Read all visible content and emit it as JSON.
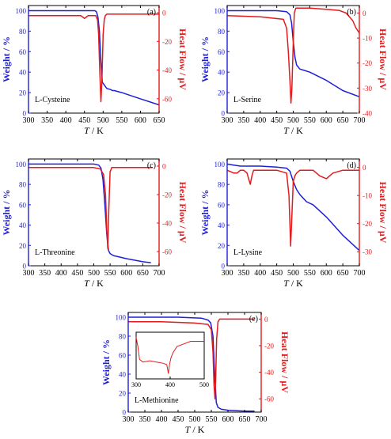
{
  "figure": {
    "colors": {
      "weight": "#1f1fd6",
      "heat": "#e41a1c",
      "axis": "#000000"
    },
    "x_tick_labels": [
      "300",
      "350",
      "400",
      "450",
      "500",
      "550",
      "600",
      "650",
      "700"
    ]
  },
  "chart_data": [
    {
      "type": "line",
      "panel_label": "(a)",
      "compound": "L-Cysteine",
      "xlabel_var": "T",
      "xlabel_unit": " / K",
      "ylabel_left": "Weight / %",
      "ylabel_right": "Heat Flow / µV",
      "xlim": [
        300,
        650
      ],
      "xticks": [
        300,
        350,
        400,
        450,
        500,
        550,
        600,
        650
      ],
      "ylim_left": [
        0,
        105
      ],
      "yticks_left": [
        0,
        20,
        40,
        60,
        80,
        100
      ],
      "ylim_right": [
        -70,
        5
      ],
      "yticks_right": [
        0,
        -20,
        -40,
        -60
      ],
      "grid": false,
      "series": [
        {
          "axis": "left",
          "color": "#1f1fd6",
          "x": [
            300,
            420,
            478,
            482,
            486,
            490,
            494,
            498,
            510,
            520,
            525,
            530,
            550,
            600,
            650
          ],
          "y": [
            100,
            100,
            100,
            99,
            94,
            80,
            50,
            30,
            24,
            23,
            22,
            22,
            20,
            14,
            8
          ]
        },
        {
          "axis": "right",
          "color": "#e41a1c",
          "x": [
            300,
            400,
            440,
            445,
            450,
            455,
            460,
            470,
            480,
            485,
            488,
            491,
            494,
            497,
            500,
            503,
            506,
            510,
            520,
            550,
            600,
            650
          ],
          "y": [
            -2,
            -2,
            -2,
            -3,
            -4,
            -3,
            -2,
            -2,
            -2,
            -5,
            -15,
            -40,
            -62,
            -45,
            -15,
            -5,
            -2,
            -1,
            -1,
            -1,
            -1,
            -1
          ]
        }
      ]
    },
    {
      "type": "line",
      "panel_label": "(b)",
      "compound": "L-Serine",
      "xlabel_var": "T",
      "xlabel_unit": " / K",
      "ylabel_left": "Weight / %",
      "ylabel_right": "Heat Flow / µV",
      "xlim": [
        300,
        700
      ],
      "xticks": [
        300,
        350,
        400,
        450,
        500,
        550,
        600,
        650,
        700
      ],
      "ylim_left": [
        0,
        105
      ],
      "yticks_left": [
        0,
        20,
        40,
        60,
        80,
        100
      ],
      "ylim_right": [
        -40,
        3
      ],
      "yticks_right": [
        0,
        -10,
        -20,
        -30,
        -40
      ],
      "grid": false,
      "series": [
        {
          "axis": "left",
          "color": "#1f1fd6",
          "x": [
            300,
            450,
            480,
            490,
            495,
            500,
            505,
            510,
            520,
            550,
            600,
            650,
            700
          ],
          "y": [
            100,
            100,
            99,
            96,
            88,
            70,
            55,
            47,
            43,
            40,
            32,
            22,
            16
          ]
        },
        {
          "axis": "right",
          "color": "#e41a1c",
          "x": [
            300,
            400,
            470,
            480,
            485,
            490,
            493,
            496,
            500,
            503,
            508,
            515,
            550,
            600,
            640,
            660,
            680,
            690,
            700
          ],
          "y": [
            -1,
            -1.5,
            -2.5,
            -6,
            -15,
            -27,
            -36,
            -30,
            -12,
            0,
            2,
            2,
            2,
            1.5,
            1,
            0,
            -3,
            -6,
            -8
          ]
        }
      ]
    },
    {
      "type": "line",
      "panel_label": "(c)",
      "compound": "L-Threonine",
      "xlabel_var": "T",
      "xlabel_unit": " / K",
      "ylabel_left": "Weight / %",
      "ylabel_right": "Heat Flow / µV",
      "xlim": [
        300,
        700
      ],
      "xticks": [
        300,
        350,
        400,
        450,
        500,
        550,
        600,
        650,
        700
      ],
      "ylim_left": [
        0,
        105
      ],
      "yticks_left": [
        0,
        20,
        40,
        60,
        80,
        100
      ],
      "ylim_right": [
        -70,
        5
      ],
      "yticks_right": [
        0,
        -20,
        -40,
        -60
      ],
      "grid": false,
      "series": [
        {
          "axis": "left",
          "color": "#1f1fd6",
          "x": [
            300,
            500,
            515,
            522,
            528,
            534,
            540,
            545,
            550,
            560,
            600,
            650,
            675
          ],
          "y": [
            100,
            100,
            99,
            96,
            85,
            60,
            30,
            15,
            12,
            10,
            7,
            4,
            3
          ]
        },
        {
          "axis": "right",
          "color": "#e41a1c",
          "x": [
            300,
            450,
            500,
            520,
            530,
            536,
            540,
            543,
            546,
            550,
            555,
            600,
            650,
            680
          ],
          "y": [
            -1,
            -1,
            -1,
            -2,
            -6,
            -20,
            -45,
            -58,
            -30,
            -4,
            -1,
            -1,
            -1,
            -1
          ]
        }
      ]
    },
    {
      "type": "line",
      "panel_label": "(d)",
      "compound": "L-Lysine",
      "xlabel_var": "T",
      "xlabel_unit": " / K",
      "ylabel_left": "Weight / %",
      "ylabel_right": "Heat Flow / µV",
      "xlim": [
        300,
        700
      ],
      "xticks": [
        300,
        350,
        400,
        450,
        500,
        550,
        600,
        650,
        700
      ],
      "ylim_left": [
        0,
        105
      ],
      "yticks_left": [
        0,
        20,
        40,
        60,
        80,
        100
      ],
      "ylim_right": [
        -35,
        3
      ],
      "yticks_right": [
        0,
        -10,
        -20,
        -30
      ],
      "grid": false,
      "series": [
        {
          "axis": "left",
          "color": "#1f1fd6",
          "x": [
            300,
            320,
            340,
            360,
            400,
            450,
            480,
            490,
            500,
            510,
            520,
            540,
            560,
            600,
            650,
            700
          ],
          "y": [
            100,
            99,
            98,
            98,
            98,
            97,
            96,
            93,
            83,
            75,
            70,
            63,
            60,
            48,
            30,
            15
          ]
        },
        {
          "axis": "right",
          "color": "#e41a1c",
          "x": [
            300,
            320,
            330,
            340,
            350,
            360,
            365,
            370,
            375,
            380,
            400,
            450,
            480,
            487,
            492,
            495,
            500,
            505,
            510,
            520,
            560,
            580,
            600,
            620,
            650,
            700
          ],
          "y": [
            -1,
            -2,
            -2,
            -1,
            -1,
            -2,
            -4,
            -6,
            -3,
            -1,
            -1,
            -1,
            -2,
            -10,
            -28,
            -20,
            -5,
            -3,
            -2,
            -1,
            -1,
            -3,
            -4,
            -2,
            -1,
            -1
          ]
        }
      ]
    },
    {
      "type": "line",
      "panel_label": "(e)",
      "compound": "L-Methionine",
      "xlabel_var": "T",
      "xlabel_unit": " / K",
      "ylabel_left": "Weight / %",
      "ylabel_right": "Heat Flow / µV",
      "xlim": [
        300,
        700
      ],
      "xticks": [
        300,
        350,
        400,
        450,
        500,
        550,
        600,
        650,
        700
      ],
      "ylim_left": [
        0,
        105
      ],
      "yticks_left": [
        0,
        20,
        40,
        60,
        80,
        100
      ],
      "ylim_right": [
        -70,
        5
      ],
      "yticks_right": [
        0,
        -20,
        -40,
        -60
      ],
      "grid": false,
      "series": [
        {
          "axis": "left",
          "color": "#1f1fd6",
          "x": [
            300,
            450,
            520,
            540,
            548,
            555,
            560,
            565,
            570,
            580,
            600,
            650,
            680
          ],
          "y": [
            100,
            100,
            99,
            97,
            94,
            80,
            40,
            10,
            5,
            3,
            2,
            1,
            1
          ]
        },
        {
          "axis": "right",
          "color": "#e41a1c",
          "x": [
            300,
            400,
            500,
            540,
            550,
            555,
            558,
            561,
            563,
            566,
            570,
            575,
            590,
            640,
            680
          ],
          "y": [
            -2,
            -2,
            -3,
            -4,
            -8,
            -25,
            -50,
            -60,
            -45,
            -15,
            -2,
            0,
            0,
            0,
            0
          ]
        }
      ],
      "inset": {
        "type": "line",
        "xlim": [
          300,
          500
        ],
        "xticks": [
          300,
          400,
          500
        ],
        "x": [
          300,
          305,
          310,
          320,
          340,
          360,
          380,
          390,
          395,
          398,
          402,
          408,
          420,
          440,
          460,
          480,
          500
        ],
        "y": [
          -5,
          -12,
          -22,
          -24,
          -23,
          -24,
          -25,
          -26,
          -33,
          -26,
          -21,
          -17,
          -12,
          -10,
          -8,
          -8,
          -8
        ]
      }
    }
  ]
}
